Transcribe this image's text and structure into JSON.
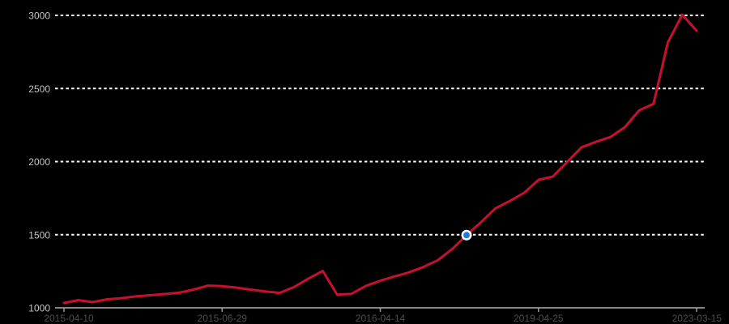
{
  "chart_data": {
    "type": "line",
    "title": "",
    "xlabel": "",
    "ylabel": "",
    "background": "#000000",
    "grid": "dotted-horizontal-white",
    "legend": "none",
    "ylim": [
      1000,
      3000
    ],
    "y_ticks": [
      1000,
      1500,
      2000,
      2500,
      3000
    ],
    "y_gridlines": [
      1500,
      2000,
      2500,
      3000
    ],
    "x_tick_labels": [
      "2015-04-10",
      "2015-06-29",
      "2016-04-14",
      "2019-04-25",
      "2023-03-15"
    ],
    "x_tick_indices": [
      0,
      11,
      22,
      33,
      44
    ],
    "series": [
      {
        "name": "value",
        "color": "#c8102e",
        "values": [
          1033,
          1052,
          1039,
          1058,
          1066,
          1078,
          1086,
          1094,
          1103,
          1124,
          1152,
          1148,
          1138,
          1124,
          1112,
          1102,
          1142,
          1200,
          1252,
          1090,
          1096,
          1150,
          1185,
          1215,
          1242,
          1280,
          1325,
          1402,
          1497,
          1585,
          1680,
          1730,
          1786,
          1875,
          1898,
          1998,
          2098,
          2135,
          2168,
          2235,
          2350,
          2395,
          2815,
          3005,
          2895
        ]
      }
    ],
    "highlight_point": {
      "series": "value",
      "index": 28,
      "value": 1497,
      "marker_fill": "#1d78e0",
      "marker_ring": "#ffffff"
    }
  },
  "colors": {
    "background": "#000000",
    "line": "#c8102e",
    "gridline": "#ffffff",
    "axis_line": "#b3b3b3",
    "tick_mark": "#999999",
    "y_label": "#c5c5c5",
    "x_label": "#4d4d4d",
    "marker_fill": "#1d78e0",
    "marker_ring": "#ffffff"
  }
}
